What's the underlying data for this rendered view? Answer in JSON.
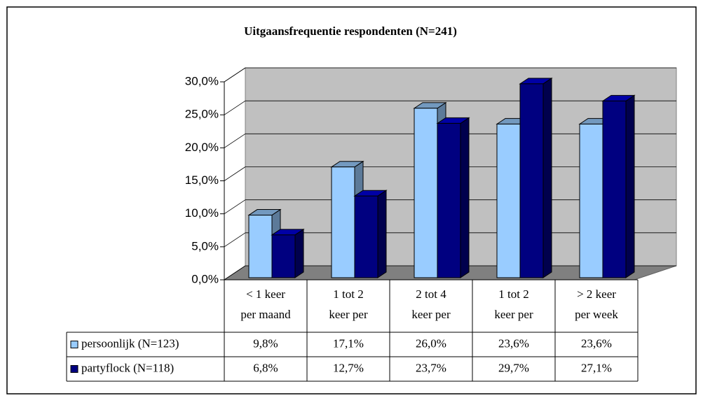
{
  "chart_data": {
    "type": "bar3d",
    "title": "Uitgaansfrequentie respondenten (N=241)",
    "categories": [
      "< 1 keer per maand",
      "1 tot 2 keer per",
      "2 tot 4 keer per",
      "1 tot 2 keer per",
      "> 2 keer per week"
    ],
    "series": [
      {
        "name": "persoonlijk (N=123)",
        "color": "#99ccff",
        "values": [
          9.8,
          17.1,
          26.0,
          23.6,
          23.6
        ],
        "value_labels": [
          "9,8%",
          "17,1%",
          "26,0%",
          "23,6%",
          "23,6%"
        ]
      },
      {
        "name": "partyflock (N=118)",
        "color": "#000080",
        "values": [
          6.8,
          12.7,
          23.7,
          29.7,
          27.1
        ],
        "value_labels": [
          "6,8%",
          "12,7%",
          "23,7%",
          "29,7%",
          "27,1%"
        ]
      }
    ],
    "ylim": [
      0,
      30
    ],
    "yticks": [
      {
        "value": 0,
        "label": "0,0%"
      },
      {
        "value": 5,
        "label": "5,0%"
      },
      {
        "value": 10,
        "label": "10,0%"
      },
      {
        "value": 15,
        "label": "15,0%"
      },
      {
        "value": 20,
        "label": "20,0%"
      },
      {
        "value": 25,
        "label": "25,0%"
      },
      {
        "value": 30,
        "label": "30,0%"
      }
    ],
    "grid": true
  }
}
